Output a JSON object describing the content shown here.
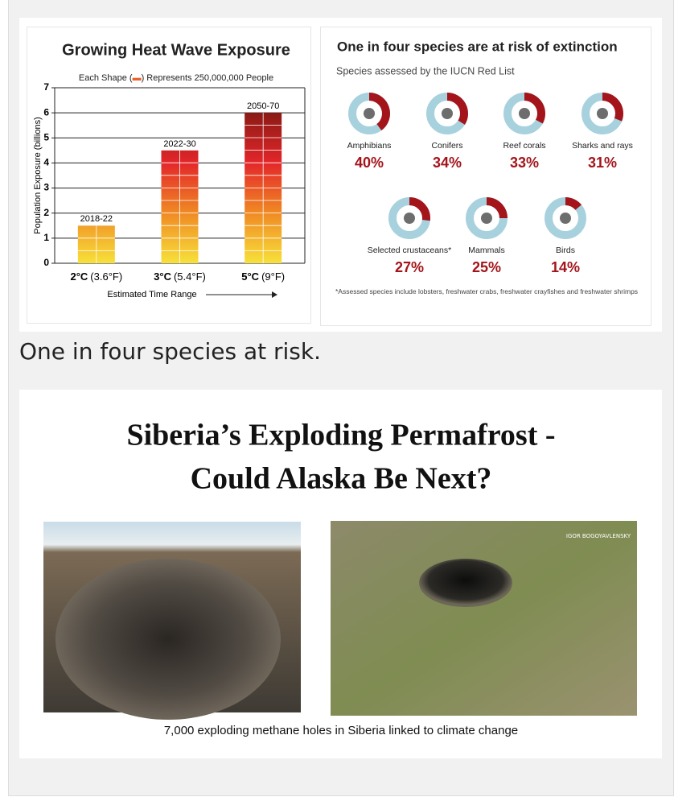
{
  "chart_data": [
    {
      "type": "bar",
      "title": "Growing Heat Wave Exposure",
      "subtitle": [
        "Each Shape (",
        ") Represents 250,000,000 People"
      ],
      "categories": [
        "2°C",
        "3°C",
        "5°C"
      ],
      "category_notes": [
        "(3.6°F)",
        "(5.4°F)",
        "(9°F)"
      ],
      "bar_labels": [
        "2018-22",
        "2022-30",
        "2050-70"
      ],
      "values": [
        1.5,
        4.5,
        6
      ],
      "ylim": [
        0,
        7
      ],
      "yticks": [
        0,
        1,
        2,
        3,
        4,
        5,
        6,
        7
      ],
      "y_label": "Population Exposure (billions)",
      "x_label": "Estimated Time Range",
      "grid": true,
      "colors": [
        "#f7e13a",
        "#f08a24",
        "#e3262a",
        "#8a1a14"
      ]
    },
    {
      "type": "donut",
      "title": "One in four species are at risk of extinction",
      "subtitle": "Species assessed by the IUCN Red List",
      "categories": [
        "Amphibians",
        "Conifers",
        "Reef corals",
        "Sharks and rays",
        "Selected crustaceans*",
        "Mammals",
        "Birds"
      ],
      "values": [
        40,
        34,
        33,
        31,
        27,
        25,
        14
      ],
      "value_labels": [
        "40%",
        "34%",
        "33%",
        "31%",
        "27%",
        "25%",
        "14%"
      ],
      "color": "#a3141b",
      "rest_color": "#a8d1de",
      "footnote": "*Assessed species include lobsters, freshwater crabs, freshwater crayfishes and freshwater shrimps"
    }
  ],
  "caption": "One in four species at risk.",
  "article": {
    "title": [
      "Siberia’s Exploding Permafrost -",
      "Could Alaska Be Next?"
    ],
    "watermark": "IGOR BOGOYAVLENSKY",
    "caption": "7,000  exploding methane holes in Siberia linked to climate change"
  }
}
